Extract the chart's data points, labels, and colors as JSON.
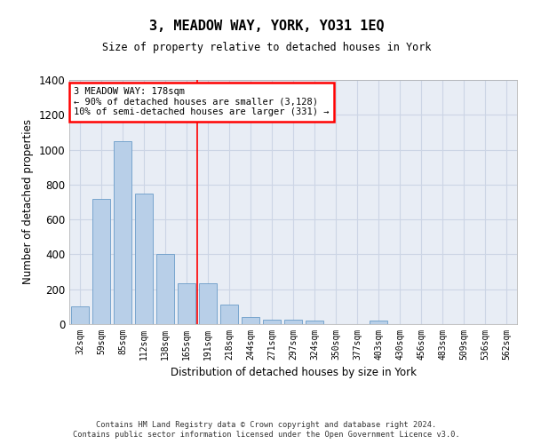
{
  "title": "3, MEADOW WAY, YORK, YO31 1EQ",
  "subtitle": "Size of property relative to detached houses in York",
  "xlabel": "Distribution of detached houses by size in York",
  "ylabel": "Number of detached properties",
  "categories": [
    "32sqm",
    "59sqm",
    "85sqm",
    "112sqm",
    "138sqm",
    "165sqm",
    "191sqm",
    "218sqm",
    "244sqm",
    "271sqm",
    "297sqm",
    "324sqm",
    "350sqm",
    "377sqm",
    "403sqm",
    "430sqm",
    "456sqm",
    "483sqm",
    "509sqm",
    "536sqm",
    "562sqm"
  ],
  "bar_heights": [
    100,
    720,
    1050,
    750,
    400,
    235,
    235,
    110,
    40,
    25,
    25,
    20,
    0,
    0,
    20,
    0,
    0,
    0,
    0,
    0,
    0
  ],
  "bar_color": "#b8cfe8",
  "bar_edge_color": "#6a9cc8",
  "grid_color": "#ccd5e5",
  "background_color": "#e8edf5",
  "red_line_x": 5.5,
  "ylim": [
    0,
    1400
  ],
  "yticks": [
    0,
    200,
    400,
    600,
    800,
    1000,
    1200,
    1400
  ],
  "annotation_lines": [
    "3 MEADOW WAY: 178sqm",
    "← 90% of detached houses are smaller (3,128)",
    "10% of semi-detached houses are larger (331) →"
  ],
  "footer_line1": "Contains HM Land Registry data © Crown copyright and database right 2024.",
  "footer_line2": "Contains public sector information licensed under the Open Government Licence v3.0."
}
